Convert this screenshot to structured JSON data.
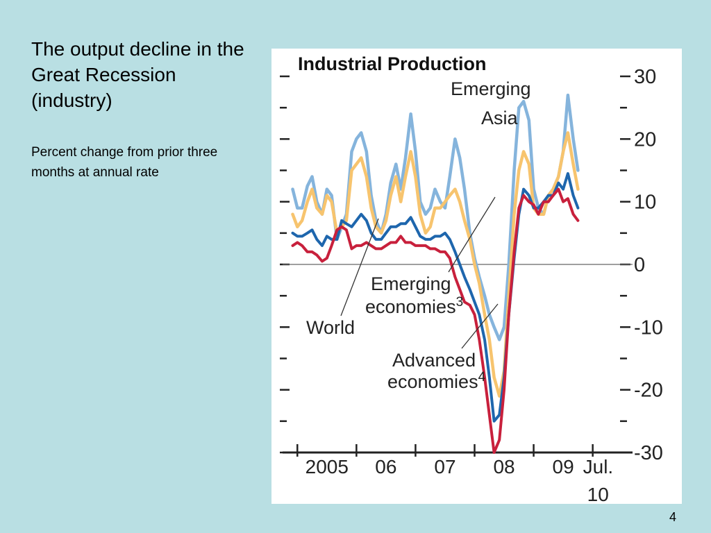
{
  "slide": {
    "title": "The output decline in the Great Recession (industry)",
    "subtitle": "Percent change from prior three months at annual rate",
    "page_number": "4",
    "background": "#b9dfe3"
  },
  "chart_data": {
    "type": "line",
    "title": "Industrial Production",
    "xlabel": "",
    "ylabel": "",
    "ylim": [
      -30,
      30
    ],
    "yticks": [
      -30,
      -20,
      -10,
      0,
      10,
      20,
      30
    ],
    "x_range": [
      2004.75,
      2010.58
    ],
    "x_tick_positions": [
      2005,
      2006,
      2007,
      2008,
      2009,
      2010
    ],
    "x_tick_labels": [
      "2005",
      "06",
      "07",
      "08",
      "09",
      "Jul. 10"
    ],
    "grid": false,
    "zero_line": true,
    "legend": "none (series labelled by annotations)",
    "series": [
      {
        "name": "Emerging Asia",
        "color": "#85b4dc",
        "values": [
          [
            2004.92,
            12
          ],
          [
            2005.0,
            9
          ],
          [
            2005.08,
            9
          ],
          [
            2005.17,
            12.5
          ],
          [
            2005.25,
            14
          ],
          [
            2005.33,
            10
          ],
          [
            2005.42,
            8
          ],
          [
            2005.5,
            12
          ],
          [
            2005.58,
            11
          ],
          [
            2005.67,
            4
          ],
          [
            2005.75,
            6
          ],
          [
            2005.83,
            8
          ],
          [
            2005.92,
            18
          ],
          [
            2006.0,
            20
          ],
          [
            2006.08,
            21
          ],
          [
            2006.17,
            18
          ],
          [
            2006.25,
            11
          ],
          [
            2006.33,
            7
          ],
          [
            2006.42,
            5
          ],
          [
            2006.5,
            8
          ],
          [
            2006.58,
            13
          ],
          [
            2006.67,
            16
          ],
          [
            2006.75,
            12
          ],
          [
            2006.83,
            17
          ],
          [
            2006.92,
            24
          ],
          [
            2007.0,
            18
          ],
          [
            2007.08,
            10
          ],
          [
            2007.17,
            8
          ],
          [
            2007.25,
            9
          ],
          [
            2007.33,
            12
          ],
          [
            2007.42,
            10
          ],
          [
            2007.5,
            9
          ],
          [
            2007.58,
            14
          ],
          [
            2007.67,
            20
          ],
          [
            2007.75,
            17
          ],
          [
            2007.83,
            12
          ],
          [
            2007.92,
            5
          ],
          [
            2008.0,
            1
          ],
          [
            2008.08,
            -2
          ],
          [
            2008.17,
            -5
          ],
          [
            2008.25,
            -8
          ],
          [
            2008.33,
            -10
          ],
          [
            2008.42,
            -12
          ],
          [
            2008.5,
            -10
          ],
          [
            2008.58,
            0
          ],
          [
            2008.67,
            15
          ],
          [
            2008.75,
            25
          ],
          [
            2008.83,
            26
          ],
          [
            2008.92,
            23
          ],
          [
            2009.0,
            12
          ],
          [
            2009.08,
            9
          ],
          [
            2009.17,
            8
          ],
          [
            2009.25,
            11
          ],
          [
            2009.33,
            12
          ],
          [
            2009.42,
            14
          ],
          [
            2009.5,
            18
          ],
          [
            2009.58,
            27
          ],
          [
            2009.67,
            20
          ],
          [
            2009.75,
            15
          ]
        ]
      },
      {
        "name": "Emerging economies",
        "color": "#f7c46e",
        "values": [
          [
            2004.92,
            8
          ],
          [
            2005.0,
            6
          ],
          [
            2005.08,
            7
          ],
          [
            2005.17,
            10
          ],
          [
            2005.25,
            12
          ],
          [
            2005.33,
            9
          ],
          [
            2005.42,
            8
          ],
          [
            2005.5,
            11
          ],
          [
            2005.58,
            10
          ],
          [
            2005.67,
            5
          ],
          [
            2005.75,
            6
          ],
          [
            2005.83,
            7
          ],
          [
            2005.92,
            15
          ],
          [
            2006.0,
            16
          ],
          [
            2006.08,
            17
          ],
          [
            2006.17,
            14
          ],
          [
            2006.25,
            9
          ],
          [
            2006.33,
            6
          ],
          [
            2006.42,
            5
          ],
          [
            2006.5,
            7
          ],
          [
            2006.58,
            11
          ],
          [
            2006.67,
            14
          ],
          [
            2006.75,
            10
          ],
          [
            2006.83,
            14
          ],
          [
            2006.92,
            18
          ],
          [
            2007.0,
            14
          ],
          [
            2007.08,
            8
          ],
          [
            2007.17,
            5
          ],
          [
            2007.25,
            6
          ],
          [
            2007.33,
            9
          ],
          [
            2007.42,
            9
          ],
          [
            2007.5,
            10
          ],
          [
            2007.58,
            11
          ],
          [
            2007.67,
            12
          ],
          [
            2007.75,
            10
          ],
          [
            2007.83,
            7
          ],
          [
            2007.92,
            4
          ],
          [
            2008.0,
            0
          ],
          [
            2008.08,
            -3
          ],
          [
            2008.17,
            -8
          ],
          [
            2008.25,
            -12
          ],
          [
            2008.33,
            -18
          ],
          [
            2008.42,
            -21
          ],
          [
            2008.5,
            -17
          ],
          [
            2008.58,
            -5
          ],
          [
            2008.67,
            8
          ],
          [
            2008.75,
            15
          ],
          [
            2008.83,
            18
          ],
          [
            2008.92,
            16
          ],
          [
            2009.0,
            9
          ],
          [
            2009.08,
            8
          ],
          [
            2009.17,
            8
          ],
          [
            2009.25,
            11
          ],
          [
            2009.33,
            12
          ],
          [
            2009.42,
            14
          ],
          [
            2009.5,
            18
          ],
          [
            2009.58,
            21
          ],
          [
            2009.67,
            16
          ],
          [
            2009.75,
            12
          ]
        ]
      },
      {
        "name": "World",
        "color": "#1e66ad",
        "values": [
          [
            2004.92,
            5
          ],
          [
            2005.0,
            4.5
          ],
          [
            2005.08,
            4.5
          ],
          [
            2005.17,
            5
          ],
          [
            2005.25,
            5.5
          ],
          [
            2005.33,
            4
          ],
          [
            2005.42,
            3
          ],
          [
            2005.5,
            4.5
          ],
          [
            2005.58,
            4
          ],
          [
            2005.67,
            4
          ],
          [
            2005.75,
            7
          ],
          [
            2005.83,
            6.5
          ],
          [
            2005.92,
            6
          ],
          [
            2006.0,
            7
          ],
          [
            2006.08,
            8
          ],
          [
            2006.17,
            7
          ],
          [
            2006.25,
            5
          ],
          [
            2006.33,
            4
          ],
          [
            2006.42,
            4
          ],
          [
            2006.5,
            5
          ],
          [
            2006.58,
            6
          ],
          [
            2006.67,
            6
          ],
          [
            2006.75,
            6.5
          ],
          [
            2006.83,
            6.5
          ],
          [
            2006.92,
            7.5
          ],
          [
            2007.0,
            6
          ],
          [
            2007.08,
            4.5
          ],
          [
            2007.17,
            4
          ],
          [
            2007.25,
            4
          ],
          [
            2007.33,
            4.5
          ],
          [
            2007.42,
            4.5
          ],
          [
            2007.5,
            5
          ],
          [
            2007.58,
            4
          ],
          [
            2007.67,
            2
          ],
          [
            2007.75,
            0
          ],
          [
            2007.83,
            -2
          ],
          [
            2007.92,
            -4
          ],
          [
            2008.0,
            -6
          ],
          [
            2008.08,
            -8
          ],
          [
            2008.17,
            -12
          ],
          [
            2008.25,
            -18
          ],
          [
            2008.33,
            -25
          ],
          [
            2008.42,
            -24
          ],
          [
            2008.5,
            -18
          ],
          [
            2008.58,
            -8
          ],
          [
            2008.67,
            1
          ],
          [
            2008.75,
            8
          ],
          [
            2008.83,
            12
          ],
          [
            2008.92,
            11
          ],
          [
            2009.0,
            9
          ],
          [
            2009.08,
            9
          ],
          [
            2009.17,
            10
          ],
          [
            2009.25,
            11
          ],
          [
            2009.33,
            11
          ],
          [
            2009.42,
            13
          ],
          [
            2009.5,
            12
          ],
          [
            2009.58,
            14.5
          ],
          [
            2009.67,
            11
          ],
          [
            2009.75,
            9
          ]
        ]
      },
      {
        "name": "Advanced economies",
        "color": "#c8203c",
        "values": [
          [
            2004.92,
            3
          ],
          [
            2005.0,
            3.5
          ],
          [
            2005.08,
            3
          ],
          [
            2005.17,
            2
          ],
          [
            2005.25,
            2
          ],
          [
            2005.33,
            1.5
          ],
          [
            2005.42,
            0.5
          ],
          [
            2005.5,
            1
          ],
          [
            2005.58,
            3
          ],
          [
            2005.67,
            5.5
          ],
          [
            2005.75,
            6
          ],
          [
            2005.83,
            5.5
          ],
          [
            2005.92,
            2.5
          ],
          [
            2006.0,
            3
          ],
          [
            2006.08,
            3
          ],
          [
            2006.17,
            3.5
          ],
          [
            2006.25,
            3
          ],
          [
            2006.33,
            2.5
          ],
          [
            2006.42,
            2.5
          ],
          [
            2006.5,
            3
          ],
          [
            2006.58,
            3.5
          ],
          [
            2006.67,
            3.5
          ],
          [
            2006.75,
            4.5
          ],
          [
            2006.83,
            3.5
          ],
          [
            2006.92,
            3.5
          ],
          [
            2007.0,
            3
          ],
          [
            2007.08,
            3
          ],
          [
            2007.17,
            3
          ],
          [
            2007.25,
            2.5
          ],
          [
            2007.33,
            2.5
          ],
          [
            2007.42,
            2
          ],
          [
            2007.5,
            2
          ],
          [
            2007.58,
            1
          ],
          [
            2007.67,
            -2
          ],
          [
            2007.75,
            -4
          ],
          [
            2007.83,
            -6
          ],
          [
            2007.92,
            -6.5
          ],
          [
            2008.0,
            -8
          ],
          [
            2008.08,
            -12
          ],
          [
            2008.17,
            -18
          ],
          [
            2008.25,
            -24
          ],
          [
            2008.33,
            -30
          ],
          [
            2008.42,
            -28
          ],
          [
            2008.5,
            -20
          ],
          [
            2008.58,
            -8
          ],
          [
            2008.67,
            2
          ],
          [
            2008.75,
            9
          ],
          [
            2008.83,
            11
          ],
          [
            2008.92,
            10
          ],
          [
            2009.0,
            9.5
          ],
          [
            2009.08,
            8
          ],
          [
            2009.17,
            10
          ],
          [
            2009.25,
            10
          ],
          [
            2009.33,
            11
          ],
          [
            2009.42,
            12
          ],
          [
            2009.5,
            10
          ],
          [
            2009.58,
            10.5
          ],
          [
            2009.67,
            8
          ],
          [
            2009.75,
            7
          ]
        ]
      }
    ],
    "annotations": [
      {
        "lines": [
          "Emerging",
          "Asia"
        ]
      },
      {
        "lines": [
          "Emerging",
          "economies"
        ],
        "superscript": "3"
      },
      {
        "lines": [
          "World"
        ]
      },
      {
        "lines": [
          "Advanced",
          "economies"
        ],
        "superscript": "4"
      }
    ]
  }
}
